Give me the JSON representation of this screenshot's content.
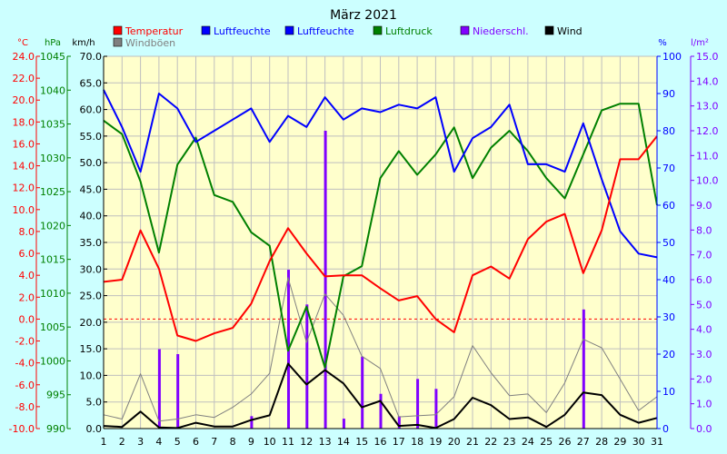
{
  "chart_data": {
    "type": "line",
    "title": "März 2021",
    "colors": {
      "background": "#ccffff",
      "plot": "#ffffcc",
      "temperature": "#ff0000",
      "humidity": "#0000ff",
      "pressure": "#008000",
      "precipitation": "#8000ff",
      "wind": "#000000",
      "gusts": "#808080",
      "grid": "#bfbfbf"
    },
    "axes": {
      "temperature": {
        "label": "°C",
        "min": -10,
        "max": 24,
        "ticks": [
          "24.0",
          "22.0",
          "20.0",
          "18.0",
          "16.0",
          "14.0",
          "12.0",
          "10.0",
          "8.0",
          "6.0",
          "4.0",
          "2.0",
          "0.0",
          "-2.0",
          "-4.0",
          "-6.0",
          "-8.0",
          "-10.0"
        ]
      },
      "pressure": {
        "label": "hPa",
        "min": 990,
        "max": 1045,
        "ticks": [
          "1045",
          "1040",
          "1035",
          "1030",
          "1025",
          "1020",
          "1015",
          "1010",
          "1005",
          "1000",
          "995",
          "990"
        ]
      },
      "wind": {
        "label": "km/h",
        "min": 0,
        "max": 70,
        "ticks": [
          "70.0",
          "65.0",
          "60.0",
          "55.0",
          "50.0",
          "45.0",
          "40.0",
          "35.0",
          "30.0",
          "25.0",
          "20.0",
          "15.0",
          "10.0",
          "5.0",
          "0.0"
        ]
      },
      "humidity": {
        "label": "%",
        "min": 0,
        "max": 100,
        "ticks": [
          "100",
          "90",
          "80",
          "70",
          "60",
          "50",
          "40",
          "30",
          "20",
          "10",
          "0"
        ]
      },
      "precipitation": {
        "label": "l/m²",
        "min": 0,
        "max": 15,
        "ticks": [
          "15.0",
          "14.0",
          "13.0",
          "12.0",
          "11.0",
          "10.0",
          "9.0",
          "8.0",
          "7.0",
          "6.0",
          "5.0",
          "4.0",
          "3.0",
          "2.0",
          "1.0",
          "0.0"
        ]
      }
    },
    "x": [
      "1",
      "2",
      "3",
      "4",
      "5",
      "6",
      "7",
      "8",
      "9",
      "10",
      "11",
      "12",
      "13",
      "14",
      "15",
      "16",
      "17",
      "18",
      "19",
      "20",
      "21",
      "22",
      "23",
      "24",
      "25",
      "26",
      "27",
      "28",
      "29",
      "30",
      "31"
    ],
    "legend": [
      {
        "label": "Temperatur",
        "color": "#ff0000"
      },
      {
        "label": "Luftfeuchte",
        "color": "#0000ff"
      },
      {
        "label": "Luftfeuchte",
        "color": "#0000ff"
      },
      {
        "label": "Luftdruck",
        "color": "#008000"
      },
      {
        "label": "Niederschl.",
        "color": "#8000ff"
      },
      {
        "label": "Wind",
        "color": "#000000"
      },
      {
        "label": "Windböen",
        "color": "#808080"
      }
    ],
    "series": [
      {
        "name": "Temperatur",
        "axis": "temperature",
        "values": [
          3.4,
          3.6,
          8.1,
          4.6,
          -1.5,
          -2.0,
          -1.3,
          -0.8,
          1.4,
          5.3,
          8.3,
          6.0,
          3.9,
          4.0,
          4.0,
          2.8,
          1.7,
          2.1,
          0.0,
          -1.2,
          4.0,
          4.8,
          3.7,
          7.3,
          8.9,
          9.6,
          4.2,
          8.1,
          14.6,
          14.6,
          16.7
        ]
      },
      {
        "name": "Luftfeuchte",
        "axis": "humidity",
        "values": [
          91,
          81,
          69,
          90,
          86,
          77,
          80,
          83,
          86,
          77,
          84,
          81,
          89,
          83,
          86,
          85,
          87,
          86,
          89,
          69,
          78,
          81,
          87,
          71,
          71,
          69,
          82,
          67,
          53,
          47,
          46
        ]
      },
      {
        "name": "Luftdruck",
        "axis": "pressure",
        "values": [
          1035.5,
          1033.5,
          1026.5,
          1016.0,
          1029.0,
          1033.0,
          1024.5,
          1023.5,
          1019.0,
          1017.0,
          1001.5,
          1008.0,
          999.0,
          1012.5,
          1014.0,
          1027.0,
          1031.0,
          1027.5,
          1030.5,
          1034.5,
          1027.0,
          1031.5,
          1034.0,
          1031.0,
          1027.0,
          1024.0,
          1030.5,
          1037.0,
          1038.0,
          1038.0,
          1023.0
        ]
      },
      {
        "name": "Niederschl.",
        "axis": "precipitation",
        "type": "bar",
        "values": [
          0,
          0,
          0,
          3.2,
          3.0,
          0,
          0,
          0,
          0.5,
          0,
          6.4,
          5.0,
          12.0,
          0.4,
          2.9,
          1.4,
          0.5,
          2.0,
          1.6,
          0,
          0,
          0,
          0,
          0,
          0,
          0,
          4.8,
          0,
          0,
          0,
          0
        ]
      },
      {
        "name": "Wind",
        "axis": "wind",
        "values": [
          0.5,
          0.3,
          3.2,
          0.2,
          0.1,
          1.1,
          0.4,
          0.4,
          1.6,
          2.5,
          12.2,
          8.3,
          11.0,
          8.5,
          4.0,
          5.2,
          0.5,
          0.7,
          0.1,
          1.8,
          5.8,
          4.4,
          1.8,
          2.1,
          0.3,
          2.6,
          6.8,
          6.3,
          2.6,
          1.1,
          2.0
        ]
      },
      {
        "name": "Windböen",
        "axis": "wind",
        "values": [
          2.6,
          1.8,
          10.3,
          1.4,
          1.8,
          2.6,
          2.1,
          4.0,
          6.5,
          10.4,
          28.4,
          16.2,
          25.3,
          21.3,
          13.6,
          11.3,
          2.2,
          2.4,
          2.6,
          6.0,
          15.6,
          10.5,
          6.2,
          6.5,
          3.0,
          8.6,
          16.8,
          15.2,
          9.3,
          3.4,
          6.0
        ]
      }
    ]
  }
}
